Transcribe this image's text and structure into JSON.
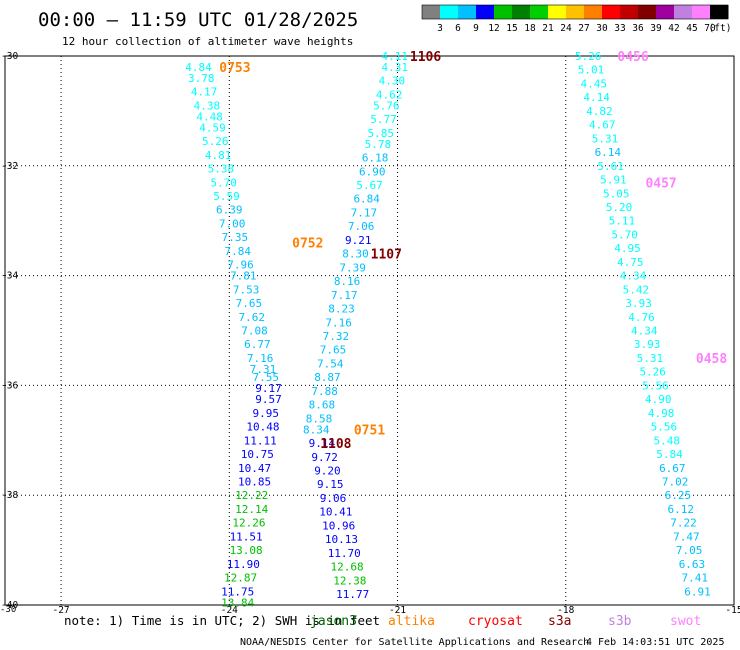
{
  "chart_data": {
    "type": "scatter",
    "title": "00:00 – 11:59 UTC 01/28/2025",
    "subtitle": "12 hour collection of altimeter wave heights",
    "colorbar": {
      "ticks": [
        "3",
        "6",
        "9",
        "12",
        "15",
        "18",
        "21",
        "24",
        "27",
        "30",
        "33",
        "36",
        "39",
        "42",
        "45",
        "70"
      ],
      "unit": "(ft)",
      "colors": [
        "#808080",
        "#00ffff",
        "#00c0ff",
        "#0000ff",
        "#00c000",
        "#008000",
        "#00d000",
        "#ffff00",
        "#ffc000",
        "#ff8000",
        "#ff0000",
        "#c00000",
        "#800000",
        "#a000a0",
        "#c080e0",
        "#ff80ff",
        "#000000"
      ]
    },
    "xlim": [
      -28,
      -15
    ],
    "ylim": [
      -40,
      -30
    ],
    "x_ticks": [
      "-27",
      "-24",
      "-21",
      "-18",
      "-15"
    ],
    "y_ticks": [
      "-30",
      "-32",
      "-34",
      "-36",
      "-38",
      "-40"
    ],
    "corner_label": "-30",
    "grid": true,
    "tracks": [
      {
        "label": "0753",
        "label_color": "#ff8000",
        "label_lon": -23.9,
        "label_lat": -30.2,
        "points": [
          {
            "lon": -24.55,
            "lat": -30.2,
            "v": 4.84
          },
          {
            "lon": -24.5,
            "lat": -30.4,
            "v": 3.78
          },
          {
            "lon": -24.45,
            "lat": -30.65,
            "v": 4.17
          },
          {
            "lon": -24.4,
            "lat": -30.9,
            "v": 4.38
          },
          {
            "lon": -24.35,
            "lat": -31.1,
            "v": 4.48
          },
          {
            "lon": -24.3,
            "lat": -31.3,
            "v": 4.59
          },
          {
            "lon": -24.25,
            "lat": -31.55,
            "v": 5.26
          },
          {
            "lon": -24.2,
            "lat": -31.8,
            "v": 4.81
          },
          {
            "lon": -24.15,
            "lat": -32.05,
            "v": 5.38
          },
          {
            "lon": -24.1,
            "lat": -32.3,
            "v": 5.7
          },
          {
            "lon": -24.05,
            "lat": -32.55,
            "v": 5.59
          },
          {
            "lon": -24.0,
            "lat": -32.8,
            "v": 6.39
          },
          {
            "lon": -23.95,
            "lat": -33.05,
            "v": 7.0
          },
          {
            "lon": -23.9,
            "lat": -33.3,
            "v": 7.35
          },
          {
            "lon": -23.85,
            "lat": -33.55,
            "v": 7.84
          },
          {
            "lon": -23.8,
            "lat": -33.8,
            "v": 7.96
          },
          {
            "lon": -23.75,
            "lat": -34.0,
            "v": 7.81
          },
          {
            "lon": -23.7,
            "lat": -34.25,
            "v": 7.53
          },
          {
            "lon": -23.65,
            "lat": -34.5,
            "v": 7.65
          },
          {
            "lon": -23.6,
            "lat": -34.75,
            "v": 7.62
          },
          {
            "lon": -23.55,
            "lat": -35.0,
            "v": 7.08
          },
          {
            "lon": -23.5,
            "lat": -35.25,
            "v": 6.77
          },
          {
            "lon": -23.45,
            "lat": -35.5,
            "v": 7.16
          },
          {
            "lon": -23.4,
            "lat": -35.7,
            "v": 7.31
          },
          {
            "lon": -23.35,
            "lat": -35.85,
            "v": 7.55
          },
          {
            "lon": -23.3,
            "lat": -36.05,
            "v": 9.17
          },
          {
            "lon": -23.3,
            "lat": -36.25,
            "v": 9.57
          },
          {
            "lon": -23.35,
            "lat": -36.5,
            "v": 9.95
          },
          {
            "lon": -23.4,
            "lat": -36.75,
            "v": 10.48
          },
          {
            "lon": -23.45,
            "lat": -37.0,
            "v": 11.11
          },
          {
            "lon": -23.5,
            "lat": -37.25,
            "v": 10.75
          },
          {
            "lon": -23.55,
            "lat": -37.5,
            "v": 10.47
          },
          {
            "lon": -23.55,
            "lat": -37.75,
            "v": 10.85
          },
          {
            "lon": -23.6,
            "lat": -38.0,
            "v": 12.22
          },
          {
            "lon": -23.6,
            "lat": -38.25,
            "v": 12.14
          },
          {
            "lon": -23.65,
            "lat": -38.5,
            "v": 12.26
          },
          {
            "lon": -23.7,
            "lat": -38.75,
            "v": 11.51
          },
          {
            "lon": -23.7,
            "lat": -39.0,
            "v": 13.08
          },
          {
            "lon": -23.75,
            "lat": -39.25,
            "v": 11.9
          },
          {
            "lon": -23.8,
            "lat": -39.5,
            "v": 12.87
          },
          {
            "lon": -23.85,
            "lat": -39.75,
            "v": 11.75
          },
          {
            "lon": -23.85,
            "lat": -39.95,
            "v": 13.84
          }
        ]
      },
      {
        "label": "0752",
        "label_color": "#ff8000",
        "label_lon": -22.6,
        "label_lat": -33.4,
        "points": []
      },
      {
        "label": "0751",
        "label_color": "#ff8000",
        "label_lon": -21.5,
        "label_lat": -36.8,
        "points": []
      },
      {
        "label": "1106",
        "label_color": "#800000",
        "label_lon": -20.5,
        "label_lat": -30.0,
        "points": [
          {
            "lon": -21.05,
            "lat": -30.0,
            "v": 4.11
          },
          {
            "lon": -21.05,
            "lat": -30.2,
            "v": 4.31
          },
          {
            "lon": -21.1,
            "lat": -30.45,
            "v": 4.3
          },
          {
            "lon": -21.15,
            "lat": -30.7,
            "v": 4.62
          },
          {
            "lon": -21.2,
            "lat": -30.9,
            "v": 5.76
          },
          {
            "lon": -21.25,
            "lat": -31.15,
            "v": 5.77
          },
          {
            "lon": -21.3,
            "lat": -31.4,
            "v": 5.85
          },
          {
            "lon": -21.35,
            "lat": -31.6,
            "v": 5.78
          },
          {
            "lon": -21.4,
            "lat": -31.85,
            "v": 6.18
          },
          {
            "lon": -21.45,
            "lat": -32.1,
            "v": 6.9
          },
          {
            "lon": -21.5,
            "lat": -32.35,
            "v": 5.67
          },
          {
            "lon": -21.55,
            "lat": -32.6,
            "v": 6.84
          },
          {
            "lon": -21.6,
            "lat": -32.85,
            "v": 7.17
          },
          {
            "lon": -21.65,
            "lat": -33.1,
            "v": 7.06
          },
          {
            "lon": -21.7,
            "lat": -33.35,
            "v": 9.21
          },
          {
            "lon": -21.75,
            "lat": -33.6,
            "v": 8.3
          },
          {
            "lon": -21.8,
            "lat": -33.85,
            "v": 7.39
          }
        ]
      },
      {
        "label": "1107",
        "label_color": "#800000",
        "label_lon": -21.2,
        "label_lat": -33.6,
        "points": [
          {
            "lon": -21.9,
            "lat": -34.1,
            "v": 8.16
          },
          {
            "lon": -21.95,
            "lat": -34.35,
            "v": 7.17
          },
          {
            "lon": -22.0,
            "lat": -34.6,
            "v": 8.23
          },
          {
            "lon": -22.05,
            "lat": -34.85,
            "v": 7.16
          },
          {
            "lon": -22.1,
            "lat": -35.1,
            "v": 7.32
          },
          {
            "lon": -22.15,
            "lat": -35.35,
            "v": 7.65
          },
          {
            "lon": -22.2,
            "lat": -35.6,
            "v": 7.54
          },
          {
            "lon": -22.25,
            "lat": -35.85,
            "v": 8.87
          },
          {
            "lon": -22.3,
            "lat": -36.1,
            "v": 7.88
          },
          {
            "lon": -22.35,
            "lat": -36.35,
            "v": 8.68
          },
          {
            "lon": -22.4,
            "lat": -36.6,
            "v": 8.58
          },
          {
            "lon": -22.45,
            "lat": -36.8,
            "v": 8.34
          }
        ]
      },
      {
        "label": "1108",
        "label_color": "#800000",
        "label_lon": -22.1,
        "label_lat": -37.05,
        "points": [
          {
            "lon": -22.35,
            "lat": -37.05,
            "v": 9.14
          },
          {
            "lon": -22.3,
            "lat": -37.3,
            "v": 9.72
          },
          {
            "lon": -22.25,
            "lat": -37.55,
            "v": 9.2
          },
          {
            "lon": -22.2,
            "lat": -37.8,
            "v": 9.15
          },
          {
            "lon": -22.15,
            "lat": -38.05,
            "v": 9.06
          },
          {
            "lon": -22.1,
            "lat": -38.3,
            "v": 10.41
          },
          {
            "lon": -22.05,
            "lat": -38.55,
            "v": 10.96
          },
          {
            "lon": -22.0,
            "lat": -38.8,
            "v": 10.13
          },
          {
            "lon": -21.95,
            "lat": -39.05,
            "v": 11.7
          },
          {
            "lon": -21.9,
            "lat": -39.3,
            "v": 12.68
          },
          {
            "lon": -21.85,
            "lat": -39.55,
            "v": 12.38
          },
          {
            "lon": -21.8,
            "lat": -39.8,
            "v": 11.77
          }
        ]
      },
      {
        "label": "0456",
        "label_color": "#ff80ff",
        "label_lon": -16.8,
        "label_lat": -30.0,
        "points": [
          {
            "lon": -17.6,
            "lat": -30.0,
            "v": 5.26
          },
          {
            "lon": -17.55,
            "lat": -30.25,
            "v": 5.01
          },
          {
            "lon": -17.5,
            "lat": -30.5,
            "v": 4.45
          },
          {
            "lon": -17.45,
            "lat": -30.75,
            "v": 4.14
          },
          {
            "lon": -17.4,
            "lat": -31.0,
            "v": 4.82
          },
          {
            "lon": -17.35,
            "lat": -31.25,
            "v": 4.67
          },
          {
            "lon": -17.3,
            "lat": -31.5,
            "v": 5.31
          },
          {
            "lon": -17.25,
            "lat": -31.75,
            "v": 6.14
          },
          {
            "lon": -17.2,
            "lat": -32.0,
            "v": 5.61
          }
        ]
      },
      {
        "label": "0457",
        "label_color": "#ff80ff",
        "label_lon": -16.3,
        "label_lat": -32.3,
        "points": [
          {
            "lon": -17.15,
            "lat": -32.25,
            "v": 5.91
          },
          {
            "lon": -17.1,
            "lat": -32.5,
            "v": 5.05
          },
          {
            "lon": -17.05,
            "lat": -32.75,
            "v": 5.2
          },
          {
            "lon": -17.0,
            "lat": -33.0,
            "v": 5.11
          },
          {
            "lon": -16.95,
            "lat": -33.25,
            "v": 5.7
          },
          {
            "lon": -16.9,
            "lat": -33.5,
            "v": 4.95
          },
          {
            "lon": -16.85,
            "lat": -33.75,
            "v": 4.75
          },
          {
            "lon": -16.8,
            "lat": -34.0,
            "v": 4.34
          },
          {
            "lon": -16.75,
            "lat": -34.25,
            "v": 5.42
          },
          {
            "lon": -16.7,
            "lat": -34.5,
            "v": 3.93
          },
          {
            "lon": -16.65,
            "lat": -34.75,
            "v": 4.76
          },
          {
            "lon": -16.6,
            "lat": -35.0,
            "v": 4.34
          },
          {
            "lon": -16.55,
            "lat": -35.25,
            "v": 3.93
          },
          {
            "lon": -16.5,
            "lat": -35.5,
            "v": 5.31
          }
        ]
      },
      {
        "label": "0458",
        "label_color": "#ff80ff",
        "label_lon": -15.4,
        "label_lat": -35.5,
        "points": [
          {
            "lon": -16.45,
            "lat": -35.75,
            "v": 5.26
          },
          {
            "lon": -16.4,
            "lat": -36.0,
            "v": 5.56
          },
          {
            "lon": -16.35,
            "lat": -36.25,
            "v": 4.9
          },
          {
            "lon": -16.3,
            "lat": -36.5,
            "v": 4.98
          },
          {
            "lon": -16.25,
            "lat": -36.75,
            "v": 5.56
          },
          {
            "lon": -16.2,
            "lat": -37.0,
            "v": 5.48
          },
          {
            "lon": -16.15,
            "lat": -37.25,
            "v": 5.84
          },
          {
            "lon": -16.1,
            "lat": -37.5,
            "v": 6.67
          },
          {
            "lon": -16.05,
            "lat": -37.75,
            "v": 7.02
          },
          {
            "lon": -16.0,
            "lat": -38.0,
            "v": 6.25
          },
          {
            "lon": -15.95,
            "lat": -38.25,
            "v": 6.12
          },
          {
            "lon": -15.9,
            "lat": -38.5,
            "v": 7.22
          },
          {
            "lon": -15.85,
            "lat": -38.75,
            "v": 7.47
          },
          {
            "lon": -15.8,
            "lat": -39.0,
            "v": 7.05
          },
          {
            "lon": -15.75,
            "lat": -39.25,
            "v": 6.63
          },
          {
            "lon": -15.7,
            "lat": -39.5,
            "v": 7.41
          },
          {
            "lon": -15.65,
            "lat": -39.75,
            "v": 6.91
          }
        ]
      }
    ]
  },
  "footer": {
    "note": "note:  1) Time is in UTC; 2) SWH is in feet",
    "satellites": [
      {
        "name": "jason3",
        "color": "#006400"
      },
      {
        "name": "altika",
        "color": "#ff8000"
      },
      {
        "name": "cryosat",
        "color": "#ff0000"
      },
      {
        "name": "s3a",
        "color": "#800000"
      },
      {
        "name": "s3b",
        "color": "#c080e0"
      },
      {
        "name": "swot",
        "color": "#ff80ff"
      }
    ],
    "credit": "NOAA/NESDIS Center for Satellite Applications and Research",
    "timestamp": "4 Feb 14:03:51 UTC 2025"
  }
}
